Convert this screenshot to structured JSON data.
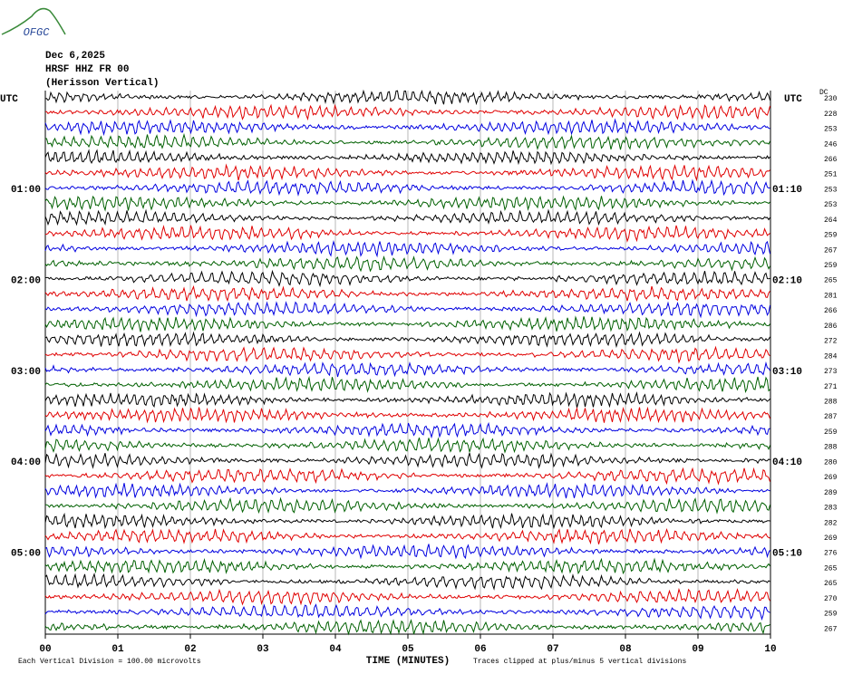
{
  "chart_data": {
    "type": "helicorder",
    "logo": "OFGC",
    "title_lines": [
      "Dec 6,2025",
      "HRSF HHZ FR 00",
      "(Herisson Vertical)"
    ],
    "dc_header": "DC",
    "left_labels": [
      "UTC",
      null,
      null,
      null,
      null,
      null,
      "01:00",
      null,
      null,
      null,
      null,
      null,
      "02:00",
      null,
      null,
      null,
      null,
      null,
      "03:00",
      null,
      null,
      null,
      null,
      null,
      "04:00",
      null,
      null,
      null,
      null,
      null,
      "05:00",
      null,
      null,
      null,
      null,
      null
    ],
    "right_labels": [
      "UTC",
      null,
      null,
      null,
      null,
      null,
      "01:10",
      null,
      null,
      null,
      null,
      null,
      "02:10",
      null,
      null,
      null,
      null,
      null,
      "03:10",
      null,
      null,
      null,
      null,
      null,
      "04:10",
      null,
      null,
      null,
      null,
      null,
      "05:10",
      null,
      null,
      null,
      null,
      null
    ],
    "dc_offsets": [
      230,
      228,
      253,
      246,
      266,
      251,
      253,
      253,
      264,
      259,
      267,
      259,
      265,
      281,
      266,
      286,
      272,
      284,
      273,
      271,
      288,
      287,
      259,
      288,
      280,
      269,
      289,
      283,
      282,
      269,
      276,
      265,
      265,
      270,
      259,
      267
    ],
    "trace_colors": [
      "#000000",
      "#e00000",
      "#0000e0",
      "#006000"
    ],
    "xlim": [
      0,
      10
    ],
    "xticks": [
      {
        "value": 0,
        "label": "00"
      },
      {
        "value": 1,
        "label": "01"
      },
      {
        "value": 2,
        "label": "02"
      },
      {
        "value": 3,
        "label": "03"
      },
      {
        "value": 4,
        "label": "04"
      },
      {
        "value": 5,
        "label": "05"
      },
      {
        "value": 6,
        "label": "06"
      },
      {
        "value": 7,
        "label": "07"
      },
      {
        "value": 8,
        "label": "08"
      },
      {
        "value": 9,
        "label": "09"
      },
      {
        "value": 10,
        "label": "10"
      }
    ],
    "x_label": "TIME (MINUTES)",
    "footer_left": "Each Vertical Division =  100.00 microvolts",
    "footer_right": "Traces clipped at plus/minus 5 vertical divisions"
  }
}
